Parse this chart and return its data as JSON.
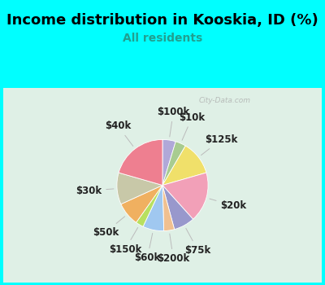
{
  "title": "Income distribution in Kooskia, ID (%)",
  "subtitle": "All residents",
  "background_color": "#00FFFF",
  "chart_bg_color": "#dff0e6",
  "watermark": "City-Data.com",
  "slices": [
    {
      "label": "$100k",
      "value": 5,
      "color": "#b0a8d8"
    },
    {
      "label": "$10k",
      "value": 4,
      "color": "#a8cc90"
    },
    {
      "label": "$125k",
      "value": 13,
      "color": "#f0e06a"
    },
    {
      "label": "$20k",
      "value": 19,
      "color": "#f2a0b8"
    },
    {
      "label": "$75k",
      "value": 8,
      "color": "#9898cc"
    },
    {
      "label": "$200k",
      "value": 4,
      "color": "#f0c090"
    },
    {
      "label": "$60k",
      "value": 8,
      "color": "#a0c8f0"
    },
    {
      "label": "$150k",
      "value": 3,
      "color": "#b8e060"
    },
    {
      "label": "$50k",
      "value": 9,
      "color": "#f0b060"
    },
    {
      "label": "$30k",
      "value": 12,
      "color": "#c8c8a8"
    },
    {
      "label": "$40k",
      "value": 22,
      "color": "#ee7f90"
    }
  ],
  "label_fontsize": 8.5,
  "title_fontsize": 13,
  "subtitle_fontsize": 10,
  "start_angle": 90,
  "label_distance": 1.38,
  "watermark_text": "City-Data.com"
}
